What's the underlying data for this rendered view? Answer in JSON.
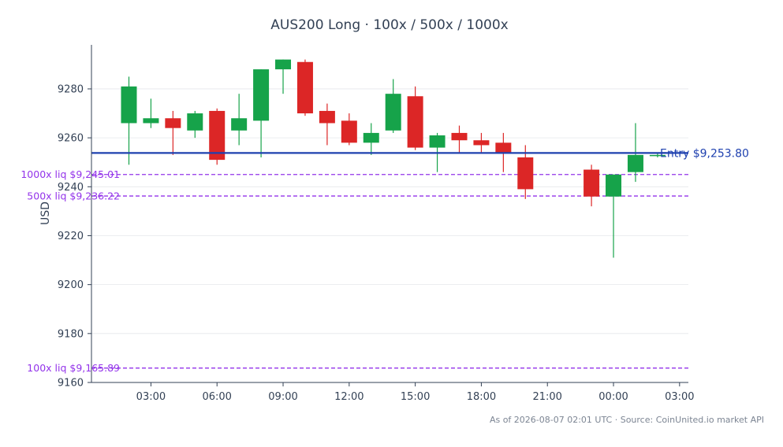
{
  "chart_data": {
    "type": "candlestick",
    "title": "AUS200 Long · 100x / 500x / 1000x",
    "xlabel": "",
    "ylabel": "USD",
    "ylim": [
      9160,
      9298
    ],
    "xlim_hours": [
      0.3,
      27.4
    ],
    "grid": {
      "y": true,
      "x": false
    },
    "y_ticks": [
      9160,
      9180,
      9200,
      9220,
      9240,
      9260,
      9280
    ],
    "x_ticks": [
      {
        "label": "03:00",
        "h": 3
      },
      {
        "label": "06:00",
        "h": 6
      },
      {
        "label": "09:00",
        "h": 9
      },
      {
        "label": "12:00",
        "h": 12
      },
      {
        "label": "15:00",
        "h": 15
      },
      {
        "label": "18:00",
        "h": 18
      },
      {
        "label": "21:00",
        "h": 21
      },
      {
        "label": "00:00",
        "h": 24
      },
      {
        "label": "03:00",
        "h": 27
      }
    ],
    "candles": [
      {
        "h": 2,
        "o": 9266,
        "hi": 9285,
        "lo": 9249,
        "c": 9281
      },
      {
        "h": 3,
        "o": 9266,
        "hi": 9276,
        "lo": 9264,
        "c": 9268
      },
      {
        "h": 4,
        "o": 9268,
        "hi": 9271,
        "lo": 9253,
        "c": 9264
      },
      {
        "h": 5,
        "o": 9263,
        "hi": 9271,
        "lo": 9260,
        "c": 9270
      },
      {
        "h": 6,
        "o": 9271,
        "hi": 9272,
        "lo": 9249,
        "c": 9251
      },
      {
        "h": 7,
        "o": 9263,
        "hi": 9278,
        "lo": 9257,
        "c": 9268
      },
      {
        "h": 8,
        "o": 9267,
        "hi": 9288,
        "lo": 9252,
        "c": 9288
      },
      {
        "h": 9,
        "o": 9288,
        "hi": 9292,
        "lo": 9278,
        "c": 9292
      },
      {
        "h": 10,
        "o": 9291,
        "hi": 9292,
        "lo": 9269,
        "c": 9270
      },
      {
        "h": 11,
        "o": 9271,
        "hi": 9274,
        "lo": 9257,
        "c": 9266
      },
      {
        "h": 12,
        "o": 9267,
        "hi": 9270,
        "lo": 9257,
        "c": 9258
      },
      {
        "h": 13,
        "o": 9258,
        "hi": 9266,
        "lo": 9253,
        "c": 9262
      },
      {
        "h": 14,
        "o": 9263,
        "hi": 9284,
        "lo": 9262,
        "c": 9278
      },
      {
        "h": 15,
        "o": 9277,
        "hi": 9281,
        "lo": 9255,
        "c": 9256
      },
      {
        "h": 16,
        "o": 9256,
        "hi": 9262,
        "lo": 9246,
        "c": 9261
      },
      {
        "h": 17,
        "o": 9262,
        "hi": 9265,
        "lo": 9254,
        "c": 9259
      },
      {
        "h": 18,
        "o": 9259,
        "hi": 9262,
        "lo": 9254,
        "c": 9257
      },
      {
        "h": 19,
        "o": 9258,
        "hi": 9262,
        "lo": 9246,
        "c": 9254
      },
      {
        "h": 20,
        "o": 9252,
        "hi": 9257,
        "lo": 9235,
        "c": 9239
      },
      {
        "h": 23,
        "o": 9247,
        "hi": 9249,
        "lo": 9232,
        "c": 9236
      },
      {
        "h": 24,
        "o": 9236,
        "hi": 9245,
        "lo": 9211,
        "c": 9245
      },
      {
        "h": 25,
        "o": 9246,
        "hi": 9266,
        "lo": 9242,
        "c": 9253
      },
      {
        "h": 26,
        "o": 9253,
        "hi": 9254,
        "lo": 9252,
        "c": 9253
      }
    ],
    "lines": [
      {
        "kind": "entry",
        "value": 9253.8,
        "label": "Entry $9,253.80"
      },
      {
        "kind": "liq",
        "value": 9245.01,
        "label": "1000x liq $9,245.01"
      },
      {
        "kind": "liq",
        "value": 9236.22,
        "label": "500x liq $9,236.22"
      },
      {
        "kind": "liq",
        "value": 9165.89,
        "label": "100x liq $9,165.89"
      }
    ],
    "colors": {
      "up": "#16a34a",
      "down": "#dc2626",
      "entry": "#1e40af",
      "liq": "#9333ea",
      "axis": "#334155",
      "text": "#334155",
      "grid": "#e5e7eb",
      "footer": "#7c8593"
    }
  },
  "footer": "As of 2026-08-07 02:01 UTC · Source: CoinUnited.io market API"
}
